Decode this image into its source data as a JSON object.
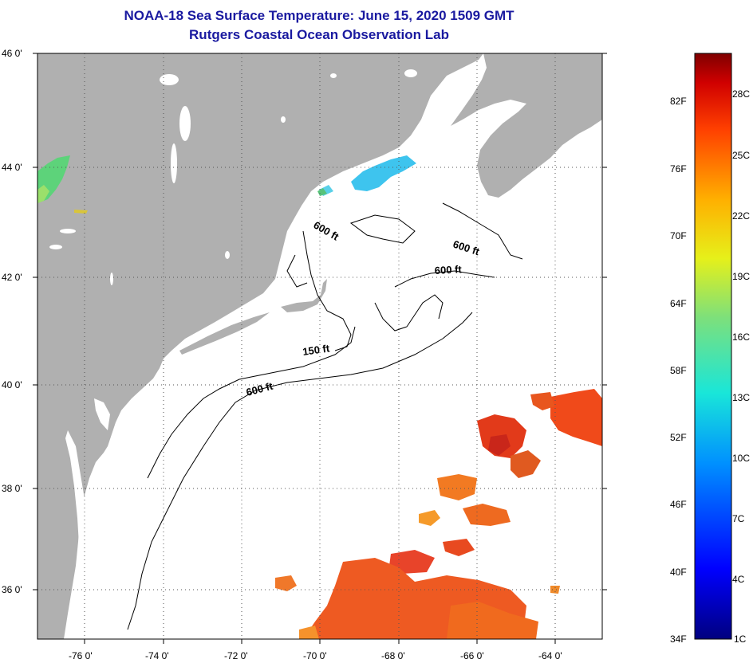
{
  "title": "NOAA-18 Sea Surface Temperature:  June 15, 2020 1509 GMT",
  "subtitle": "Rutgers Coastal Ocean Observation Lab",
  "latitude_ticks": [
    "46 0'",
    "44 0'",
    "42 0'",
    "40 0'",
    "38 0'",
    "36 0'"
  ],
  "longitude_ticks": [
    "-76 0'",
    "-74 0'",
    "-72 0'",
    "-70 0'",
    "-68 0'",
    "-66 0'",
    "-64 0'"
  ],
  "contour_labels": [
    "600 ft",
    "600 ft",
    "600 ft",
    "150 ft",
    "600 ft"
  ],
  "colorbar": {
    "fahrenheit_labels": [
      "82F",
      "76F",
      "70F",
      "64F",
      "58F",
      "52F",
      "46F",
      "40F",
      "34F"
    ],
    "celsius_labels": [
      "28C",
      "25C",
      "22C",
      "19C",
      "16C",
      "13C",
      "10C",
      "7C",
      "4C",
      "1C"
    ]
  },
  "colors": {
    "land": "#b0b0b0",
    "ocean": "#ffffff",
    "title": "#1a1aa0",
    "grid": "#555555"
  }
}
